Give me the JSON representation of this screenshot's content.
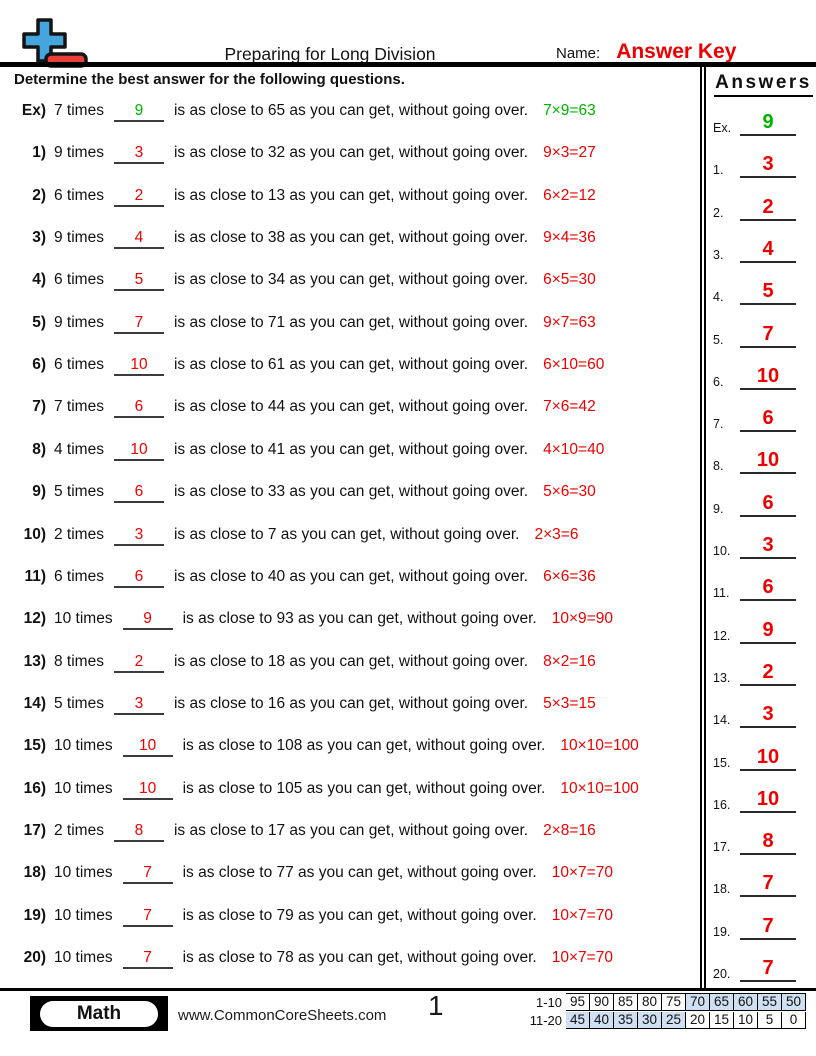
{
  "colors": {
    "red": "#ee0000",
    "green": "#00b400",
    "cell_blue": "#cfe0f2",
    "logo_blue": "#45a5dd",
    "logo_red": "#e8413c"
  },
  "header": {
    "title": "Preparing for Long Division",
    "name_label": "Name:",
    "name_value": "Answer Key"
  },
  "instruction": "Determine the best answer for the following questions.",
  "answers_title": "Answers",
  "questions": [
    {
      "num": "Ex)",
      "side_label": "Ex.",
      "prefix": "7 times",
      "answer": "9",
      "suffix": "is as close to 65 as you can get, without going over.",
      "equation": "7×9=63",
      "color": "green"
    },
    {
      "num": "1)",
      "side_label": "1.",
      "prefix": "9 times",
      "answer": "3",
      "suffix": "is as close to 32 as you can get, without going over.",
      "equation": "9×3=27",
      "color": "red"
    },
    {
      "num": "2)",
      "side_label": "2.",
      "prefix": "6 times",
      "answer": "2",
      "suffix": "is as close to 13 as you can get, without going over.",
      "equation": "6×2=12",
      "color": "red"
    },
    {
      "num": "3)",
      "side_label": "3.",
      "prefix": "9 times",
      "answer": "4",
      "suffix": "is as close to 38 as you can get, without going over.",
      "equation": "9×4=36",
      "color": "red"
    },
    {
      "num": "4)",
      "side_label": "4.",
      "prefix": "6 times",
      "answer": "5",
      "suffix": "is as close to 34 as you can get, without going over.",
      "equation": "6×5=30",
      "color": "red"
    },
    {
      "num": "5)",
      "side_label": "5.",
      "prefix": "9 times",
      "answer": "7",
      "suffix": "is as close to 71 as you can get, without going over.",
      "equation": "9×7=63",
      "color": "red"
    },
    {
      "num": "6)",
      "side_label": "6.",
      "prefix": "6 times",
      "answer": "10",
      "suffix": "is as close to 61 as you can get, without going over.",
      "equation": "6×10=60",
      "color": "red"
    },
    {
      "num": "7)",
      "side_label": "7.",
      "prefix": "7 times",
      "answer": "6",
      "suffix": "is as close to 44 as you can get, without going over.",
      "equation": "7×6=42",
      "color": "red"
    },
    {
      "num": "8)",
      "side_label": "8.",
      "prefix": "4 times",
      "answer": "10",
      "suffix": "is as close to 41 as you can get, without going over.",
      "equation": "4×10=40",
      "color": "red"
    },
    {
      "num": "9)",
      "side_label": "9.",
      "prefix": "5 times",
      "answer": "6",
      "suffix": "is as close to 33 as you can get, without going over.",
      "equation": "5×6=30",
      "color": "red"
    },
    {
      "num": "10)",
      "side_label": "10.",
      "prefix": "2 times",
      "answer": "3",
      "suffix": "is as close to 7 as you can get, without going over.",
      "equation": "2×3=6",
      "color": "red"
    },
    {
      "num": "11)",
      "side_label": "11.",
      "prefix": "6 times",
      "answer": "6",
      "suffix": "is as close to 40 as you can get, without going over.",
      "equation": "6×6=36",
      "color": "red"
    },
    {
      "num": "12)",
      "side_label": "12.",
      "prefix": "10 times",
      "answer": "9",
      "suffix": "is as close to 93 as you can get, without going over.",
      "equation": "10×9=90",
      "color": "red"
    },
    {
      "num": "13)",
      "side_label": "13.",
      "prefix": "8 times",
      "answer": "2",
      "suffix": "is as close to 18 as you can get, without going over.",
      "equation": "8×2=16",
      "color": "red"
    },
    {
      "num": "14)",
      "side_label": "14.",
      "prefix": "5 times",
      "answer": "3",
      "suffix": "is as close to 16 as you can get, without going over.",
      "equation": "5×3=15",
      "color": "red"
    },
    {
      "num": "15)",
      "side_label": "15.",
      "prefix": "10 times",
      "answer": "10",
      "suffix": "is as close to 108 as you can get, without going over.",
      "equation": "10×10=100",
      "color": "red"
    },
    {
      "num": "16)",
      "side_label": "16.",
      "prefix": "10 times",
      "answer": "10",
      "suffix": "is as close to 105 as you can get, without going over.",
      "equation": "10×10=100",
      "color": "red"
    },
    {
      "num": "17)",
      "side_label": "17.",
      "prefix": "2 times",
      "answer": "8",
      "suffix": "is as close to 17 as you can get, without going over.",
      "equation": "2×8=16",
      "color": "red"
    },
    {
      "num": "18)",
      "side_label": "18.",
      "prefix": "10 times",
      "answer": "7",
      "suffix": "is as close to 77 as you can get, without going over.",
      "equation": "10×7=70",
      "color": "red"
    },
    {
      "num": "19)",
      "side_label": "19.",
      "prefix": "10 times",
      "answer": "7",
      "suffix": "is as close to 79 as you can get, without going over.",
      "equation": "10×7=70",
      "color": "red"
    },
    {
      "num": "20)",
      "side_label": "20.",
      "prefix": "10 times",
      "answer": "7",
      "suffix": "is as close to 78 as you can get, without going over.",
      "equation": "10×7=70",
      "color": "red"
    }
  ],
  "score_table": {
    "rows": [
      {
        "label": "1-10",
        "cells": [
          "95",
          "90",
          "85",
          "80",
          "75",
          "70",
          "65",
          "60",
          "55",
          "50"
        ],
        "shaded": [
          false,
          false,
          false,
          false,
          false,
          true,
          true,
          true,
          true,
          true
        ]
      },
      {
        "label": "11-20",
        "cells": [
          "45",
          "40",
          "35",
          "30",
          "25",
          "20",
          "15",
          "10",
          "5",
          "0"
        ],
        "shaded": [
          true,
          true,
          true,
          true,
          true,
          false,
          false,
          false,
          false,
          false
        ]
      }
    ]
  },
  "footer": {
    "subject": "Math",
    "website": "www.CommonCoreSheets.com",
    "page": "1"
  }
}
